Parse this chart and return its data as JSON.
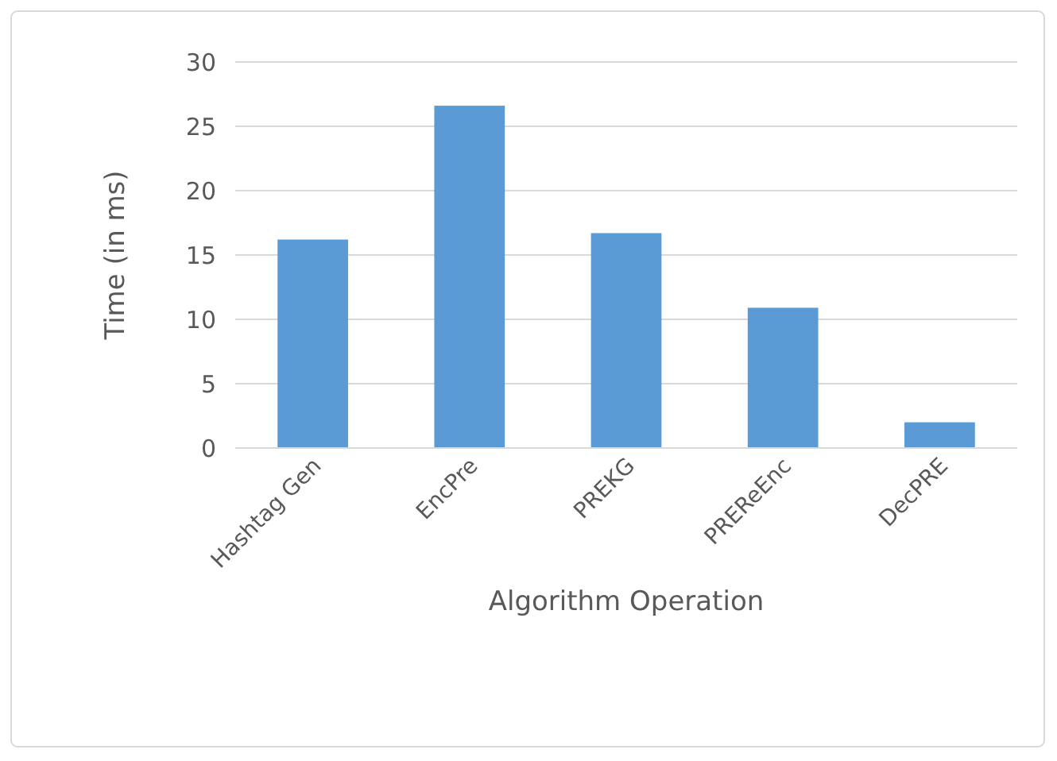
{
  "chart_data": {
    "type": "bar",
    "xlabel": "Algorithm Operation",
    "ylabel": "Time (in ms)",
    "categories": [
      "Hashtag Gen",
      "EncPre",
      "PREKG",
      "PREReEnc",
      "DecPRE"
    ],
    "values": [
      16.2,
      26.6,
      16.7,
      10.9,
      2.0
    ],
    "color": "#5b9bd5",
    "ylim": [
      0,
      30
    ],
    "yticks": [
      0,
      5,
      10,
      15,
      20,
      25,
      30
    ],
    "grid": "y"
  }
}
